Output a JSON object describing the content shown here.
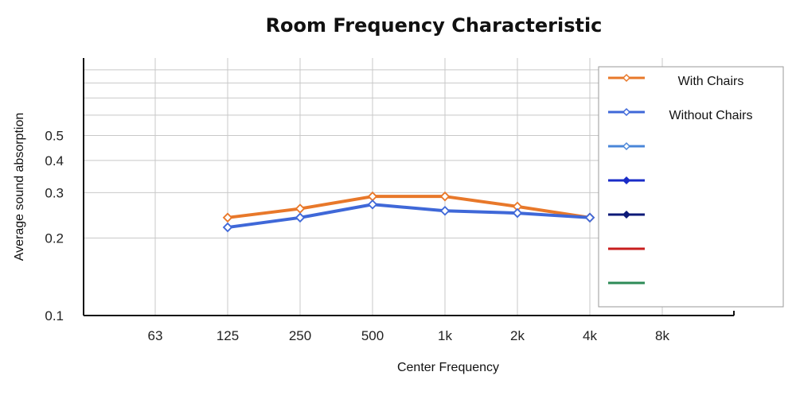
{
  "chart_data": {
    "type": "line",
    "title": "Room Frequency Characteristic",
    "xlabel": "Center Frequency",
    "ylabel": "Average sound absorption",
    "y_scale": "log",
    "ylim": [
      0.1,
      1.0
    ],
    "yticks": [
      {
        "value": 0.1,
        "label": "0.1"
      },
      {
        "value": 0.2,
        "label": "0.2"
      },
      {
        "value": 0.3,
        "label": "0.3"
      },
      {
        "value": 0.4,
        "label": "0.4"
      },
      {
        "value": 0.5,
        "label": "0.5"
      }
    ],
    "categories": [
      "63",
      "125",
      "250",
      "500",
      "1k",
      "2k",
      "4k",
      "8k"
    ],
    "grid": true,
    "legend_placement": "right",
    "series": [
      {
        "name": "With Chairs",
        "color": "#E8782A",
        "marker": "diamond-open",
        "values": [
          null,
          0.24,
          0.26,
          0.29,
          0.29,
          0.265,
          0.24,
          null
        ]
      },
      {
        "name": "Without Chairs",
        "color": "#3F68D8",
        "marker": "diamond-open",
        "values": [
          null,
          0.22,
          0.24,
          0.27,
          0.255,
          0.25,
          0.24,
          null
        ]
      }
    ],
    "legend_entries": [
      {
        "label": "With Chairs",
        "color": "#E8782A",
        "marker": "diamond-open"
      },
      {
        "label": "Without Chairs",
        "color": "#3F68D8",
        "marker": "diamond-open"
      },
      {
        "label": "",
        "color": "#4A86D8",
        "marker": "diamond-open"
      },
      {
        "label": "",
        "color": "#1A2CC8",
        "marker": "diamond-filled"
      },
      {
        "label": "",
        "color": "#0D1A78",
        "marker": "diamond-filled"
      },
      {
        "label": "",
        "color": "#C81E1E",
        "marker": "none"
      },
      {
        "label": "",
        "color": "#2E8B57",
        "marker": "none"
      }
    ]
  }
}
